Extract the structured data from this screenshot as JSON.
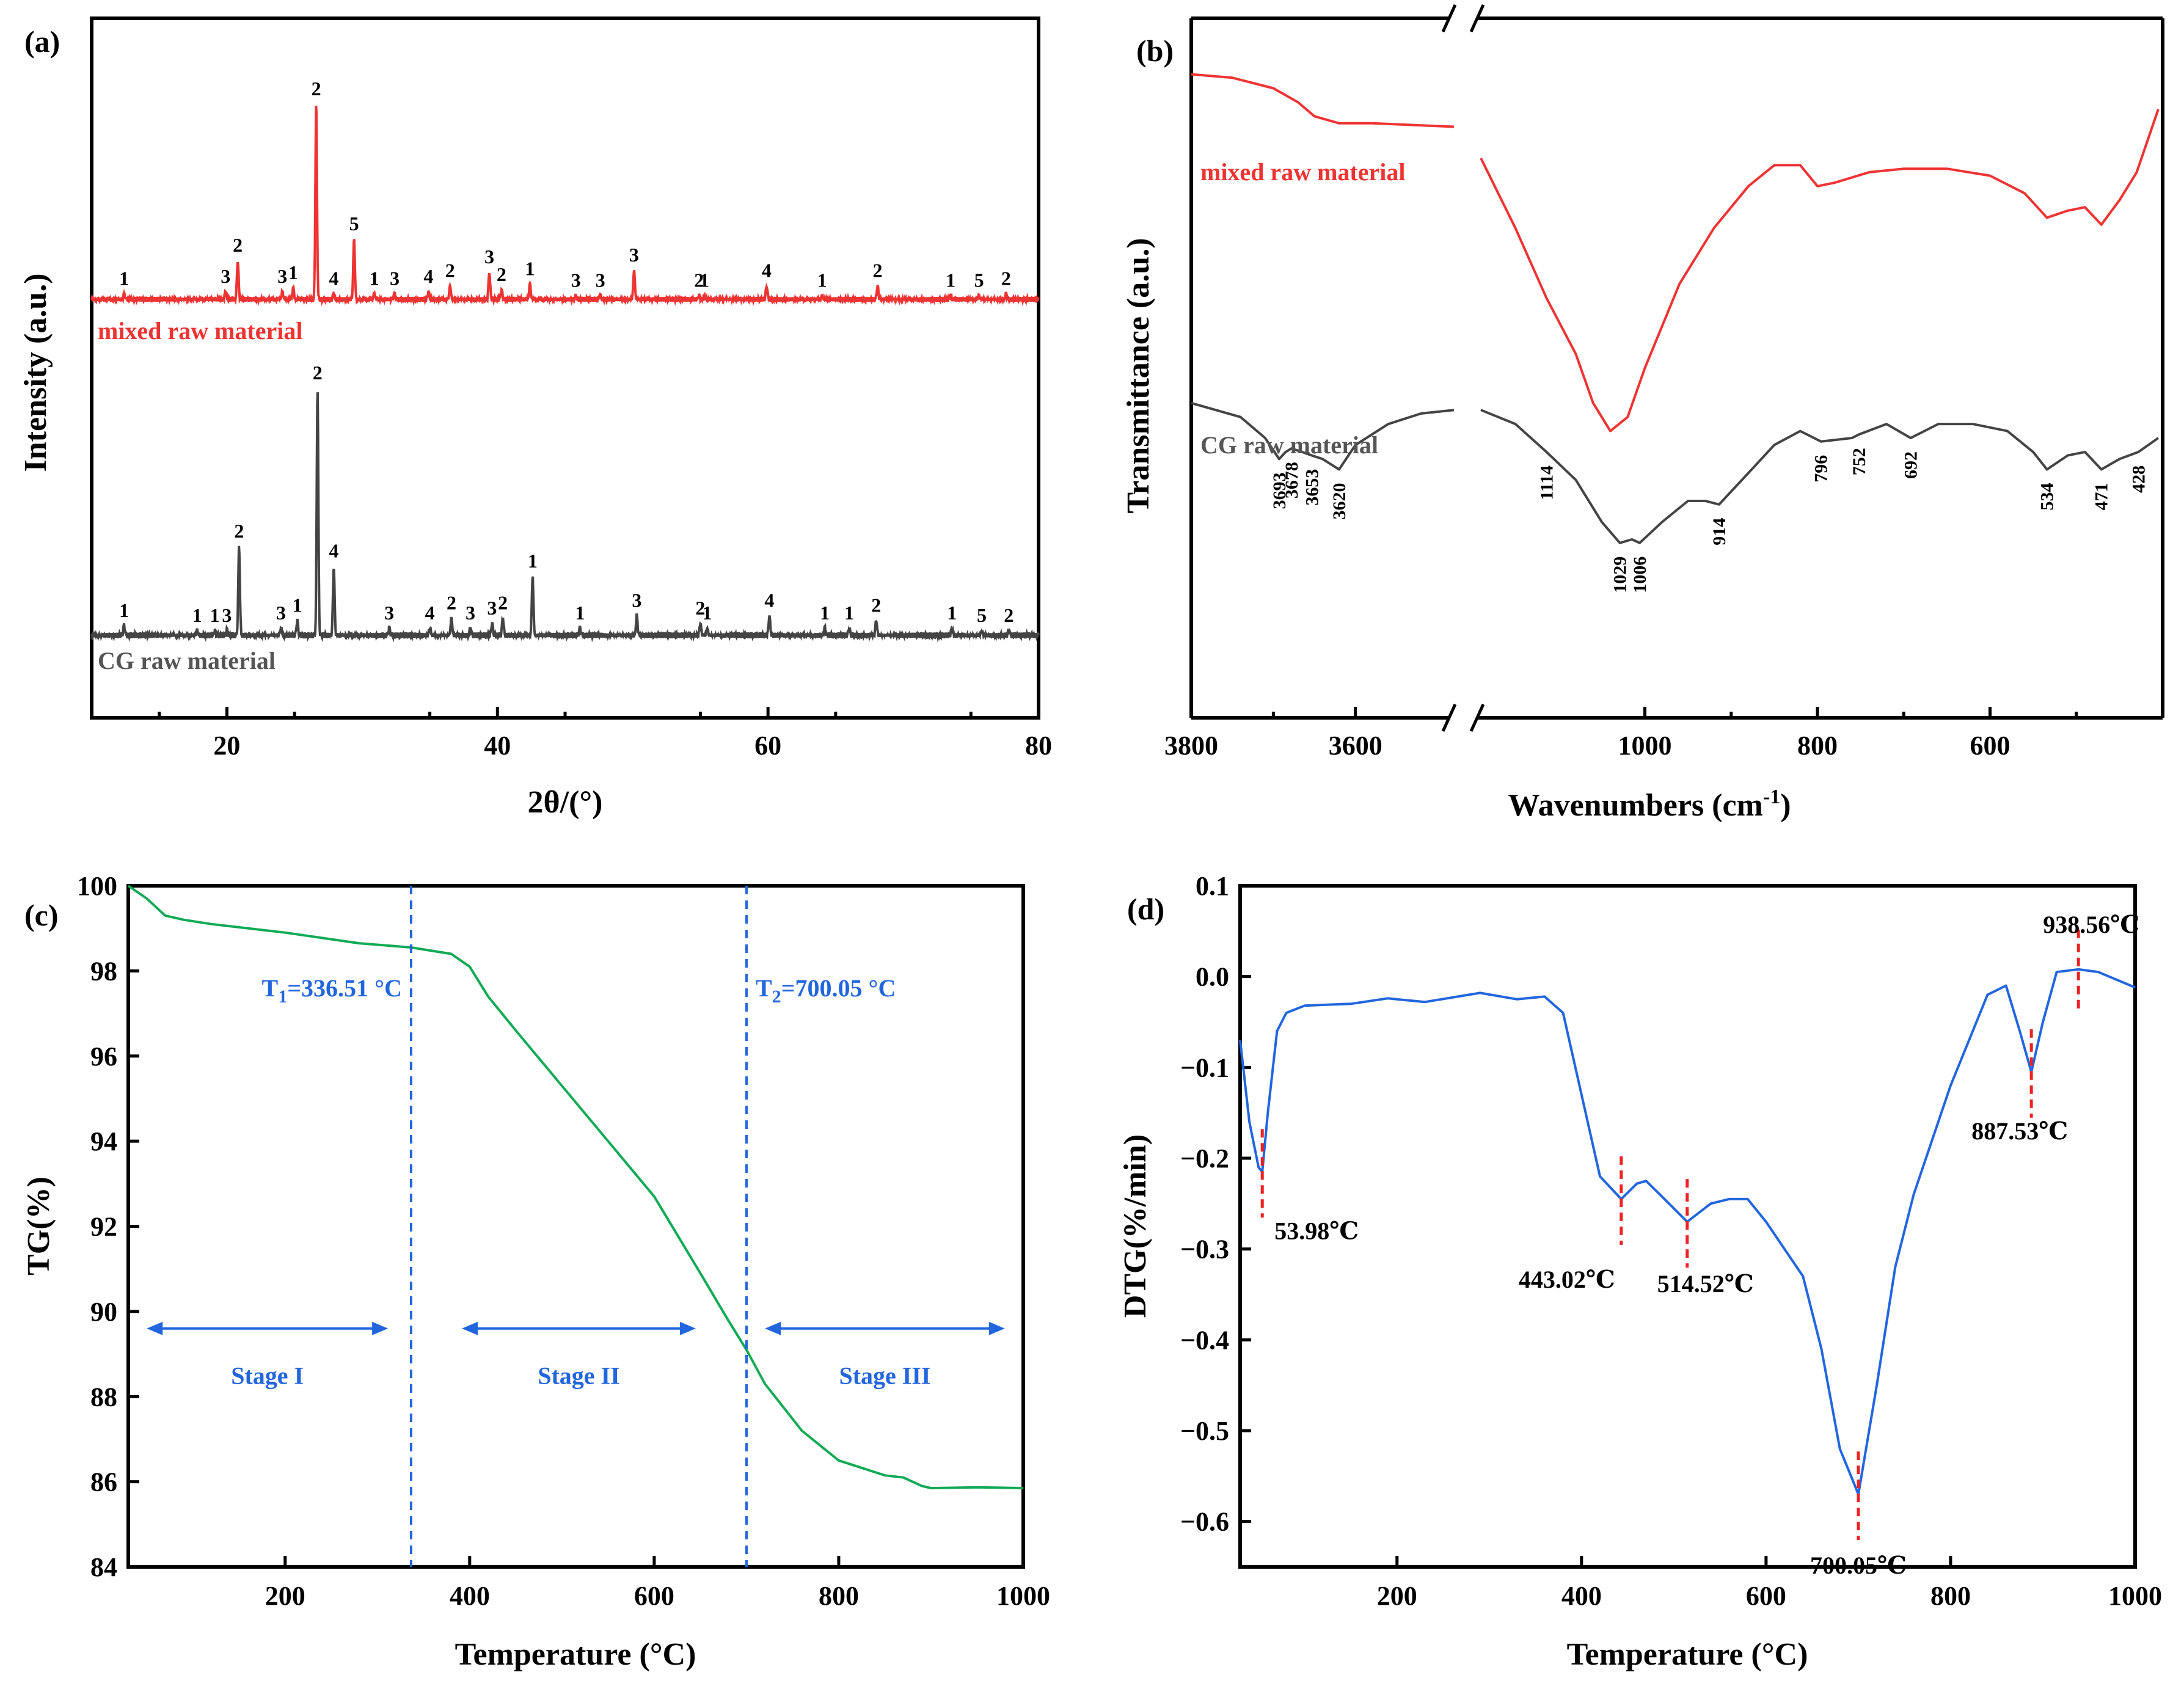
{
  "chart_data": [
    {
      "panel": "(a)",
      "type": "line",
      "xlabel": "2θ/(°)",
      "ylabel": "Intensity (a.u.)",
      "xlim": [
        10,
        80
      ],
      "xticks": [
        20,
        40,
        60,
        80
      ],
      "colors": {
        "mixed": "#ee3333",
        "cg": "#444444"
      },
      "series": [
        {
          "name": "mixed raw material",
          "baseline": 0.0,
          "noise": 0.0,
          "peaks": [
            {
              "x": 12.4,
              "h": 0.03,
              "label": "1"
            },
            {
              "x": 19.9,
              "h": 0.04,
              "label": "3"
            },
            {
              "x": 20.8,
              "h": 0.2,
              "label": "2"
            },
            {
              "x": 24.1,
              "h": 0.04,
              "label": "3"
            },
            {
              "x": 24.9,
              "h": 0.06,
              "label": "1"
            },
            {
              "x": 26.6,
              "h": 1.0,
              "label": "2"
            },
            {
              "x": 27.9,
              "h": 0.03,
              "label": "4"
            },
            {
              "x": 29.4,
              "h": 0.31,
              "label": "5"
            },
            {
              "x": 30.9,
              "h": 0.03,
              "label": "1"
            },
            {
              "x": 32.4,
              "h": 0.03,
              "label": "3"
            },
            {
              "x": 34.9,
              "h": 0.04,
              "label": "4"
            },
            {
              "x": 36.5,
              "h": 0.07,
              "label": "2"
            },
            {
              "x": 39.4,
              "h": 0.14,
              "label": "3"
            },
            {
              "x": 40.3,
              "h": 0.05,
              "label": "2"
            },
            {
              "x": 42.4,
              "h": 0.08,
              "label": "1"
            },
            {
              "x": 45.8,
              "h": 0.02,
              "label": "3"
            },
            {
              "x": 47.6,
              "h": 0.02,
              "label": "3"
            },
            {
              "x": 50.1,
              "h": 0.15,
              "label": "3"
            },
            {
              "x": 54.9,
              "h": 0.02,
              "label": "2"
            },
            {
              "x": 55.3,
              "h": 0.02,
              "label": "1"
            },
            {
              "x": 59.9,
              "h": 0.07,
              "label": "4"
            },
            {
              "x": 64.0,
              "h": 0.02,
              "label": "1"
            },
            {
              "x": 68.1,
              "h": 0.07,
              "label": "2"
            },
            {
              "x": 73.5,
              "h": 0.02,
              "label": "1"
            },
            {
              "x": 75.6,
              "h": 0.02,
              "label": "5"
            },
            {
              "x": 77.6,
              "h": 0.03,
              "label": "2"
            }
          ]
        },
        {
          "name": "CG raw material",
          "peaks": [
            {
              "x": 12.4,
              "h": 0.04,
              "label": "1"
            },
            {
              "x": 17.8,
              "h": 0.02,
              "label": "1"
            },
            {
              "x": 19.1,
              "h": 0.02,
              "label": "1"
            },
            {
              "x": 20.0,
              "h": 0.02,
              "label": "3"
            },
            {
              "x": 20.9,
              "h": 0.36,
              "label": "2"
            },
            {
              "x": 24.0,
              "h": 0.03,
              "label": "3"
            },
            {
              "x": 25.2,
              "h": 0.06,
              "label": "1"
            },
            {
              "x": 26.7,
              "h": 1.0,
              "label": "2"
            },
            {
              "x": 27.9,
              "h": 0.28,
              "label": "4"
            },
            {
              "x": 32.0,
              "h": 0.03,
              "label": "3"
            },
            {
              "x": 35.0,
              "h": 0.03,
              "label": "4"
            },
            {
              "x": 36.6,
              "h": 0.07,
              "label": "2"
            },
            {
              "x": 38.0,
              "h": 0.03,
              "label": "3"
            },
            {
              "x": 39.6,
              "h": 0.05,
              "label": "3"
            },
            {
              "x": 40.4,
              "h": 0.07,
              "label": "2"
            },
            {
              "x": 42.6,
              "h": 0.24,
              "label": "1"
            },
            {
              "x": 46.1,
              "h": 0.03,
              "label": "1"
            },
            {
              "x": 50.3,
              "h": 0.08,
              "label": "3"
            },
            {
              "x": 55.0,
              "h": 0.05,
              "label": "2"
            },
            {
              "x": 55.5,
              "h": 0.03,
              "label": "1"
            },
            {
              "x": 60.1,
              "h": 0.08,
              "label": "4"
            },
            {
              "x": 64.2,
              "h": 0.03,
              "label": "1"
            },
            {
              "x": 66.0,
              "h": 0.03,
              "label": "1"
            },
            {
              "x": 68.0,
              "h": 0.06,
              "label": "2"
            },
            {
              "x": 73.6,
              "h": 0.03,
              "label": "1"
            },
            {
              "x": 75.8,
              "h": 0.02,
              "label": "5"
            },
            {
              "x": 77.8,
              "h": 0.02,
              "label": "2"
            }
          ]
        }
      ]
    },
    {
      "panel": "(b)",
      "type": "line",
      "xlabel": "Wavenumbers (cm",
      "xlabel_sup": "-1",
      "xlabel_end": ")",
      "ylabel": "Transmittance (a.u.)",
      "broken_axis": true,
      "segments": [
        {
          "xlim": [
            3800,
            3480
          ],
          "xticks": [
            3800,
            3600
          ]
        },
        {
          "xlim": [
            1200,
            400
          ],
          "xticks": [
            1000,
            800,
            600
          ]
        }
      ],
      "colors": {
        "mixed": "#ee3333",
        "cg": "#444444"
      },
      "series": [
        {
          "name": "mixed raw material",
          "segment1": [
            [
              3800,
              0.92
            ],
            [
              3750,
              0.915
            ],
            [
              3700,
              0.9
            ],
            [
              3670,
              0.88
            ],
            [
              3650,
              0.86
            ],
            [
              3620,
              0.85
            ],
            [
              3580,
              0.85
            ],
            [
              3480,
              0.845
            ]
          ],
          "segment2": [
            [
              1190,
              0.8
            ],
            [
              1150,
              0.7
            ],
            [
              1114,
              0.6
            ],
            [
              1080,
              0.52
            ],
            [
              1060,
              0.45
            ],
            [
              1040,
              0.41
            ],
            [
              1020,
              0.43
            ],
            [
              1000,
              0.5
            ],
            [
              960,
              0.62
            ],
            [
              920,
              0.7
            ],
            [
              880,
              0.76
            ],
            [
              850,
              0.79
            ],
            [
              820,
              0.79
            ],
            [
              800,
              0.76
            ],
            [
              780,
              0.765
            ],
            [
              740,
              0.78
            ],
            [
              700,
              0.785
            ],
            [
              650,
              0.785
            ],
            [
              600,
              0.775
            ],
            [
              560,
              0.75
            ],
            [
              534,
              0.715
            ],
            [
              510,
              0.725
            ],
            [
              490,
              0.73
            ],
            [
              471,
              0.705
            ],
            [
              450,
              0.74
            ],
            [
              430,
              0.78
            ],
            [
              405,
              0.87
            ]
          ]
        },
        {
          "name": "CG raw material",
          "segment1": [
            [
              3800,
              0.45
            ],
            [
              3740,
              0.43
            ],
            [
              3710,
              0.4
            ],
            [
              3693,
              0.37
            ],
            [
              3685,
              0.38
            ],
            [
              3678,
              0.385
            ],
            [
              3665,
              0.38
            ],
            [
              3653,
              0.375
            ],
            [
              3640,
              0.37
            ],
            [
              3620,
              0.355
            ],
            [
              3600,
              0.39
            ],
            [
              3560,
              0.42
            ],
            [
              3520,
              0.435
            ],
            [
              3480,
              0.44
            ]
          ],
          "segment2": [
            [
              1190,
              0.44
            ],
            [
              1150,
              0.42
            ],
            [
              1114,
              0.38
            ],
            [
              1080,
              0.34
            ],
            [
              1050,
              0.28
            ],
            [
              1029,
              0.25
            ],
            [
              1015,
              0.255
            ],
            [
              1006,
              0.25
            ],
            [
              980,
              0.28
            ],
            [
              950,
              0.31
            ],
            [
              930,
              0.31
            ],
            [
              914,
              0.305
            ],
            [
              880,
              0.35
            ],
            [
              850,
              0.39
            ],
            [
              820,
              0.41
            ],
            [
              796,
              0.395
            ],
            [
              760,
              0.4
            ],
            [
              752,
              0.405
            ],
            [
              720,
              0.42
            ],
            [
              692,
              0.4
            ],
            [
              660,
              0.42
            ],
            [
              620,
              0.42
            ],
            [
              580,
              0.41
            ],
            [
              550,
              0.38
            ],
            [
              534,
              0.355
            ],
            [
              510,
              0.375
            ],
            [
              490,
              0.38
            ],
            [
              471,
              0.355
            ],
            [
              450,
              0.37
            ],
            [
              428,
              0.38
            ],
            [
              405,
              0.4
            ]
          ]
        }
      ],
      "peak_labels": [
        "3693",
        "3678",
        "3653",
        "3620",
        "1114",
        "1029",
        "1006",
        "914",
        "796",
        "752",
        "692",
        "534",
        "471",
        "428"
      ]
    },
    {
      "panel": "(c)",
      "type": "line",
      "xlabel": "Temperature (°C)",
      "ylabel": "TG(%)",
      "xlim": [
        30,
        1000
      ],
      "ylim": [
        84,
        100
      ],
      "xticks": [
        200,
        400,
        600,
        800,
        1000
      ],
      "yticks": [
        84,
        86,
        88,
        90,
        92,
        94,
        96,
        98,
        100
      ],
      "color": "#11aa55",
      "series": [
        {
          "name": "TG",
          "x": [
            30,
            50,
            70,
            90,
            120,
            200,
            280,
            336.5,
            380,
            400,
            420,
            450,
            500,
            550,
            600,
            650,
            680,
            700,
            720,
            760,
            800,
            850,
            870,
            890,
            900,
            950,
            1000
          ],
          "y": [
            100,
            99.7,
            99.3,
            99.2,
            99.1,
            98.9,
            98.65,
            98.55,
            98.4,
            98.1,
            97.4,
            96.6,
            95.3,
            94.0,
            92.7,
            90.9,
            89.8,
            89.1,
            88.3,
            87.2,
            86.5,
            86.15,
            86.1,
            85.9,
            85.85,
            85.87,
            85.85
          ]
        }
      ],
      "vlines": [
        336.51,
        700.05
      ],
      "vline_labels": {
        "t1_main": "T",
        "t1_sub": "1",
        "t1_rest": "=336.51 °C",
        "t2_main": "T",
        "t2_sub": "2",
        "t2_rest": "=700.05 °C"
      },
      "stages": [
        "Stage I",
        "Stage II",
        "Stage III"
      ],
      "stage_color": "#2266dd"
    },
    {
      "panel": "(d)",
      "type": "line",
      "xlabel": "Temperature (°C)",
      "ylabel": "DTG(%/min)",
      "xlim": [
        30,
        1000
      ],
      "ylim": [
        -0.65,
        0.1
      ],
      "xticks": [
        200,
        400,
        600,
        800,
        1000
      ],
      "yticks": [
        0.1,
        0.0,
        -0.1,
        -0.2,
        -0.3,
        -0.4,
        -0.5,
        -0.6
      ],
      "ytick_labels": [
        "0.1",
        "0.0",
        "−0.1",
        "−0.2",
        "−0.3",
        "−0.4",
        "−0.5",
        "−0.6"
      ],
      "color": "#2266dd",
      "series": [
        {
          "name": "DTG",
          "x": [
            30,
            40,
            50,
            53.98,
            60,
            70,
            80,
            100,
            150,
            190,
            230,
            290,
            330,
            360,
            380,
            400,
            420,
            443.02,
            460,
            470,
            490,
            514.52,
            540,
            560,
            580,
            600,
            640,
            660,
            680,
            700.05,
            720,
            740,
            760,
            800,
            840,
            860,
            875,
            887.53,
            900,
            915,
            938.56,
            960,
            1000
          ],
          "y": [
            -0.07,
            -0.16,
            -0.21,
            -0.215,
            -0.15,
            -0.06,
            -0.04,
            -0.032,
            -0.03,
            -0.024,
            -0.028,
            -0.018,
            -0.025,
            -0.022,
            -0.04,
            -0.13,
            -0.22,
            -0.245,
            -0.228,
            -0.225,
            -0.245,
            -0.27,
            -0.25,
            -0.245,
            -0.245,
            -0.27,
            -0.33,
            -0.41,
            -0.52,
            -0.57,
            -0.45,
            -0.32,
            -0.24,
            -0.12,
            -0.02,
            -0.01,
            -0.06,
            -0.105,
            -0.05,
            0.005,
            0.008,
            0.005,
            -0.012
          ]
        }
      ],
      "annotations": [
        {
          "x": 53.98,
          "y": -0.215,
          "label": "53.98℃"
        },
        {
          "x": 443.02,
          "y": -0.245,
          "label": "443.02℃"
        },
        {
          "x": 514.52,
          "y": -0.27,
          "label": "514.52℃"
        },
        {
          "x": 700.05,
          "y": -0.57,
          "label": "700.05℃"
        },
        {
          "x": 887.53,
          "y": -0.105,
          "label": "887.53℃"
        },
        {
          "x": 938.56,
          "y": 0.008,
          "label": "938.56℃"
        }
      ],
      "marker_color": "#ee2222"
    }
  ]
}
